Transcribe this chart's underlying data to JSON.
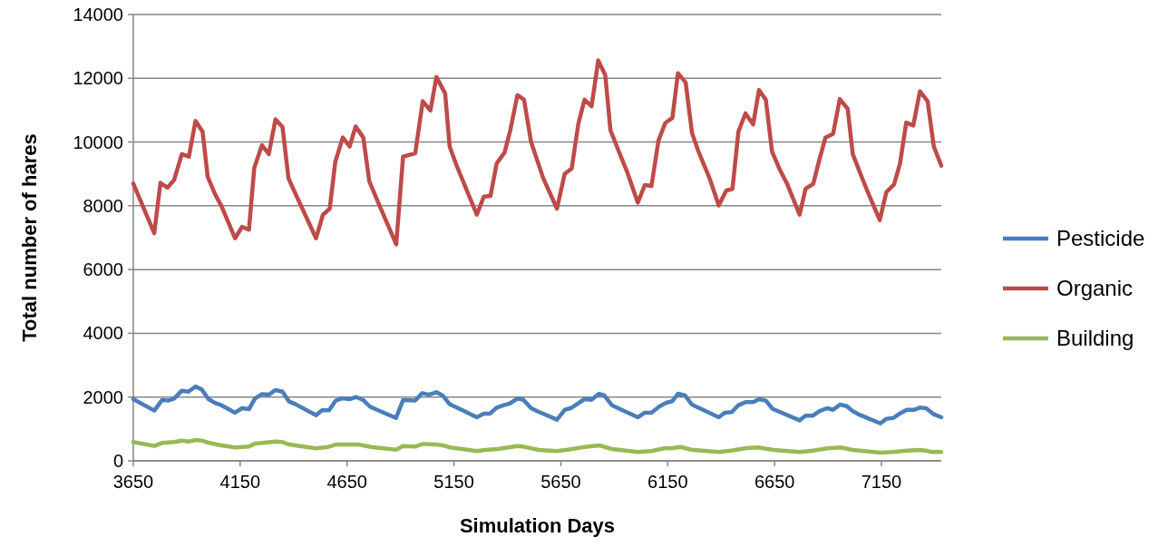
{
  "chart_data": {
    "type": "line",
    "xlabel": "Simulation Days",
    "ylabel": "Total number of hares",
    "xlim": [
      3650,
      7430
    ],
    "xticks": [
      3650,
      4150,
      4650,
      5150,
      5650,
      6150,
      6650,
      7150
    ],
    "ylim": [
      0,
      14000
    ],
    "yticks": [
      0,
      2000,
      4000,
      6000,
      8000,
      10000,
      12000,
      14000
    ],
    "grid": "y",
    "legend": "right",
    "marker": "none",
    "line_style": "solid",
    "series": [
      {
        "name": "Pesticide",
        "color": "#4a7ebb",
        "x": [
          3650,
          3748,
          3784,
          3813,
          3841,
          3877,
          3908,
          3941,
          3970,
          4002,
          4034,
          4062,
          4126,
          4159,
          4191,
          4219,
          4252,
          4284,
          4315,
          4348,
          4379,
          4409,
          4505,
          4533,
          4566,
          4597,
          4630,
          4662,
          4693,
          4726,
          4757,
          4790,
          4879,
          4912,
          4969,
          5002,
          5033,
          5068,
          5097,
          5130,
          5161,
          5257,
          5290,
          5318,
          5351,
          5383,
          5411,
          5447,
          5475,
          5511,
          5547,
          5632,
          5668,
          5696,
          5761,
          5793,
          5829,
          5853,
          5889,
          6010,
          6043,
          6074,
          6110,
          6143,
          6172,
          6198,
          6231,
          6263,
          6389,
          6417,
          6450,
          6481,
          6514,
          6550,
          6578,
          6609,
          6641,
          6767,
          6795,
          6828,
          6859,
          6895,
          6924,
          6956,
          6988,
          7016,
          7049,
          7145,
          7173,
          7206,
          7237,
          7269,
          7302,
          7330,
          7359,
          7395,
          7430
        ],
        "values": [
          1935,
          1575,
          1905,
          1890,
          1955,
          2200,
          2170,
          2330,
          2240,
          1935,
          1810,
          1745,
          1510,
          1650,
          1620,
          1955,
          2095,
          2075,
          2220,
          2170,
          1860,
          1775,
          1430,
          1585,
          1585,
          1890,
          1965,
          1935,
          2000,
          1905,
          1700,
          1600,
          1345,
          1905,
          1890,
          2125,
          2075,
          2155,
          2050,
          1775,
          1680,
          1365,
          1480,
          1480,
          1670,
          1745,
          1795,
          1955,
          1915,
          1650,
          1535,
          1290,
          1600,
          1650,
          1935,
          1915,
          2105,
          2050,
          1745,
          1365,
          1510,
          1510,
          1700,
          1820,
          1870,
          2105,
          2050,
          1765,
          1365,
          1510,
          1530,
          1745,
          1840,
          1840,
          1935,
          1890,
          1630,
          1270,
          1415,
          1415,
          1555,
          1650,
          1600,
          1765,
          1715,
          1555,
          1440,
          1175,
          1320,
          1345,
          1490,
          1600,
          1600,
          1670,
          1650,
          1460,
          1365
        ]
      },
      {
        "name": "Organic",
        "color": "#be4b48",
        "x": [
          3650,
          3748,
          3777,
          3810,
          3841,
          3877,
          3910,
          3941,
          3974,
          3998,
          4034,
          4062,
          4126,
          4159,
          4191,
          4216,
          4252,
          4284,
          4315,
          4348,
          4376,
          4405,
          4441,
          4505,
          4537,
          4569,
          4595,
          4630,
          4662,
          4690,
          4726,
          4754,
          4805,
          4880,
          4912,
          4969,
          5004,
          5040,
          5068,
          5109,
          5130,
          5161,
          5257,
          5290,
          5321,
          5350,
          5387,
          5414,
          5447,
          5478,
          5511,
          5568,
          5632,
          5668,
          5701,
          5732,
          5761,
          5794,
          5825,
          5858,
          5882,
          5918,
          5961,
          6010,
          6043,
          6074,
          6107,
          6139,
          6172,
          6198,
          6234,
          6264,
          6296,
          6346,
          6389,
          6424,
          6453,
          6481,
          6514,
          6550,
          6577,
          6609,
          6638,
          6674,
          6710,
          6767,
          6795,
          6831,
          6859,
          6888,
          6924,
          6955,
          6992,
          7016,
          7049,
          7083,
          7142,
          7173,
          7209,
          7237,
          7266,
          7299,
          7330,
          7366,
          7395,
          7430
        ],
        "values": [
          8700,
          7140,
          8720,
          8570,
          8810,
          9620,
          9540,
          10660,
          10330,
          8910,
          8340,
          8000,
          6980,
          7340,
          7250,
          9190,
          9900,
          9620,
          10710,
          10470,
          8860,
          8430,
          7910,
          6980,
          7720,
          7910,
          9380,
          10140,
          9860,
          10490,
          10140,
          8770,
          7960,
          6790,
          9540,
          9650,
          11280,
          10990,
          12040,
          11520,
          9860,
          9290,
          7720,
          8290,
          8310,
          9330,
          9670,
          10380,
          11470,
          11330,
          10000,
          8860,
          7910,
          9000,
          9170,
          10570,
          11330,
          11120,
          12560,
          12100,
          10380,
          9760,
          9050,
          8100,
          8650,
          8620,
          10050,
          10600,
          10760,
          12160,
          11870,
          10280,
          9670,
          8860,
          8010,
          8480,
          8530,
          10330,
          10900,
          10550,
          11630,
          11330,
          9710,
          9140,
          8670,
          7720,
          8530,
          8690,
          9430,
          10140,
          10260,
          11350,
          11040,
          9620,
          9050,
          8480,
          7550,
          8430,
          8670,
          9330,
          10610,
          10520,
          11590,
          11280,
          9860,
          9260
        ]
      },
      {
        "name": "Building",
        "color": "#98b954",
        "x": [
          3650,
          3748,
          3784,
          3841,
          3877,
          3906,
          3945,
          3977,
          4005,
          4062,
          4126,
          4191,
          4219,
          4317,
          4348,
          4379,
          4505,
          4562,
          4597,
          4704,
          4762,
          4879,
          4912,
          4969,
          5004,
          5068,
          5097,
          5132,
          5258,
          5297,
          5354,
          5447,
          5475,
          5547,
          5632,
          5682,
          5761,
          5829,
          5889,
          6010,
          6074,
          6132,
          6172,
          6210,
          6260,
          6389,
          6446,
          6517,
          6574,
          6645,
          6767,
          6831,
          6895,
          6959,
          7016,
          7145,
          7202,
          7273,
          7330,
          7359,
          7387,
          7430
        ],
        "values": [
          590,
          465,
          560,
          590,
          635,
          605,
          655,
          625,
          560,
          485,
          420,
          445,
          540,
          605,
          590,
          510,
          390,
          435,
          510,
          510,
          435,
          350,
          465,
          445,
          530,
          510,
          485,
          420,
          305,
          340,
          370,
          465,
          445,
          340,
          305,
          350,
          435,
          485,
          370,
          275,
          305,
          390,
          400,
          435,
          350,
          275,
          320,
          400,
          420,
          340,
          275,
          320,
          390,
          420,
          340,
          255,
          275,
          320,
          340,
          320,
          275,
          275
        ]
      }
    ]
  }
}
